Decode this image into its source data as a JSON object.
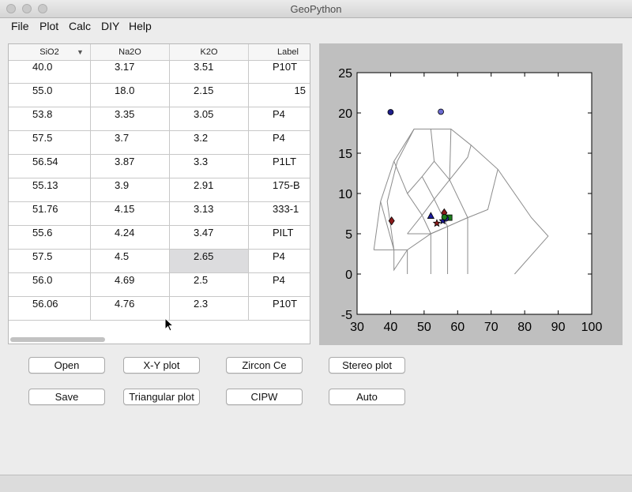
{
  "window": {
    "title": "GeoPython"
  },
  "menu": [
    "File",
    "Plot",
    "Calc",
    "DIY",
    "Help"
  ],
  "table": {
    "columns": [
      "SiO2",
      "Na2O",
      "K2O",
      "Label"
    ],
    "rows": [
      [
        "40.0",
        "3.17",
        "3.51",
        "P10T"
      ],
      [
        "55.0",
        "18.0",
        "2.15",
        "15"
      ],
      [
        "53.8",
        "3.35",
        "3.05",
        "P4"
      ],
      [
        "57.5",
        "3.7",
        "3.2",
        "P4"
      ],
      [
        "56.54",
        "3.87",
        "3.3",
        "P1LT"
      ],
      [
        "55.13",
        "3.9",
        "2.91",
        "175-B"
      ],
      [
        "51.76",
        "4.15",
        "3.13",
        "333-1"
      ],
      [
        "55.6",
        "4.24",
        "3.47",
        "PILT"
      ],
      [
        "57.5",
        "4.5",
        "2.65",
        "P4"
      ],
      [
        "56.0",
        "4.69",
        "2.5",
        "P4"
      ],
      [
        "56.06",
        "4.76",
        "2.3",
        "P10T"
      ]
    ],
    "selected_cell": {
      "row": 8,
      "col": 2
    }
  },
  "buttons": {
    "row1": [
      "Open",
      "X-Y plot",
      "Zircon Ce",
      "Stereo plot"
    ],
    "row2": [
      "Save",
      "Triangular plot",
      "CIPW",
      "Auto"
    ]
  },
  "chart_data": {
    "type": "scatter",
    "title": "",
    "xlabel": "",
    "ylabel": "",
    "xlim": [
      30,
      100
    ],
    "ylim": [
      -5,
      25
    ],
    "xticks": [
      "30",
      "40",
      "50",
      "60",
      "70",
      "80",
      "90",
      "100"
    ],
    "yticks": [
      "-5",
      "0",
      "5",
      "10",
      "15",
      "20",
      "25"
    ],
    "grid": false,
    "colors": {
      "line": "#8c8c8c",
      "frame": "#000000"
    },
    "boundaries": [
      [
        [
          41,
          3
        ],
        [
          39,
          9
        ],
        [
          42,
          14
        ],
        [
          47,
          18
        ],
        [
          52,
          18
        ],
        [
          58,
          18
        ],
        [
          64,
          16
        ],
        [
          72,
          13
        ],
        [
          82,
          7
        ],
        [
          87,
          4.7
        ],
        [
          77,
          0
        ]
      ],
      [
        [
          41,
          3
        ],
        [
          45,
          3
        ],
        [
          52,
          5
        ],
        [
          57,
          5.9
        ],
        [
          63,
          7
        ],
        [
          69,
          8
        ],
        [
          72,
          13
        ]
      ],
      [
        [
          41,
          3
        ],
        [
          41,
          0.5
        ],
        [
          45,
          3
        ]
      ],
      [
        [
          45,
          3
        ],
        [
          45,
          0
        ]
      ],
      [
        [
          45,
          5
        ],
        [
          49.4,
          7.3
        ],
        [
          53,
          9.3
        ],
        [
          57.6,
          11.7
        ],
        [
          63,
          14.5
        ],
        [
          64,
          16
        ]
      ],
      [
        [
          45,
          5
        ],
        [
          52,
          5
        ]
      ],
      [
        [
          49.4,
          7.3
        ],
        [
          52,
          5
        ]
      ],
      [
        [
          52,
          5
        ],
        [
          52,
          0
        ]
      ],
      [
        [
          52,
          5
        ],
        [
          57,
          5.9
        ],
        [
          57,
          0
        ]
      ],
      [
        [
          57,
          5.9
        ],
        [
          63,
          7
        ],
        [
          63,
          0
        ]
      ],
      [
        [
          53,
          9.3
        ],
        [
          57,
          5.9
        ]
      ],
      [
        [
          57.6,
          11.7
        ],
        [
          63,
          7
        ]
      ],
      [
        [
          52,
          18
        ],
        [
          53,
          14
        ],
        [
          57.6,
          11.7
        ],
        [
          58,
          18
        ]
      ],
      [
        [
          35,
          3
        ],
        [
          37,
          9
        ],
        [
          41,
          14
        ],
        [
          47,
          18
        ]
      ],
      [
        [
          37,
          9
        ],
        [
          41,
          3
        ]
      ],
      [
        [
          41,
          14
        ],
        [
          45,
          10
        ],
        [
          49.4,
          7.3
        ]
      ],
      [
        [
          45,
          10
        ],
        [
          49.4,
          12.1
        ],
        [
          53,
          14
        ]
      ],
      [
        [
          49.4,
          12.1
        ],
        [
          53,
          9.3
        ]
      ],
      [
        [
          35,
          3
        ],
        [
          41,
          3
        ]
      ]
    ],
    "series": [
      {
        "marker": "circle",
        "color": "#1f1f8c",
        "points": [
          [
            40,
            20.1
          ]
        ]
      },
      {
        "marker": "circle",
        "color": "#6a6ad0",
        "points": [
          [
            55,
            20.15
          ]
        ]
      },
      {
        "marker": "diamond",
        "color": "#8b1a1a",
        "points": [
          [
            40.3,
            6.6
          ],
          [
            56,
            7.6
          ]
        ]
      },
      {
        "marker": "triangle",
        "color": "#1c1c9c",
        "points": [
          [
            52,
            7.2
          ]
        ]
      },
      {
        "marker": "square",
        "color": "#1d7d1d",
        "points": [
          [
            57.5,
            7.0
          ]
        ]
      },
      {
        "marker": "star",
        "color": "#8b1a1a",
        "points": [
          [
            53.8,
            6.3
          ]
        ]
      },
      {
        "marker": "star",
        "color": "#1c1c9c",
        "points": [
          [
            55.6,
            6.6
          ]
        ]
      },
      {
        "marker": "circle",
        "color": "#2a2a9a",
        "points": [
          [
            56.5,
            6.9
          ]
        ]
      },
      {
        "marker": "circle",
        "color": "#1d7d1d",
        "points": [
          [
            56.06,
            7.06
          ]
        ]
      }
    ]
  }
}
